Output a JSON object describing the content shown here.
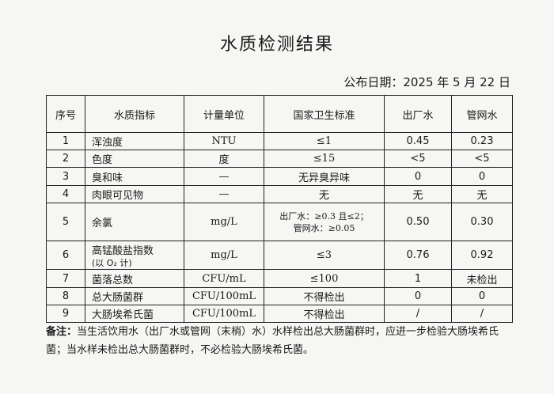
{
  "title": "水质检测结果",
  "date": "公布日期：2025 年 5 月 22 日",
  "headers": [
    "序号",
    "水质指标",
    "计量单位",
    "国家卫生标准",
    "出厂水",
    "管网水"
  ],
  "rows": [
    {
      "no": "1",
      "item": "浑浊度",
      "unit": "NTU",
      "standard": "≤1",
      "plant": "0.45",
      "network": "0.23"
    },
    {
      "no": "2",
      "item": "色度",
      "unit": "度",
      "standard": "≤15",
      "plant": "<5",
      "network": "<5"
    },
    {
      "no": "3",
      "item": "臭和味",
      "unit": "—",
      "standard": "无异臭异味",
      "plant": "0",
      "network": "0"
    },
    {
      "no": "4",
      "item": "肉眼可见物",
      "unit": "—",
      "standard": "无",
      "plant": "无",
      "network": "无"
    },
    {
      "no": "5",
      "item": "余氯",
      "unit": "mg/L",
      "standard": "出厂水：≥0.3 且≤2；",
      "standard2": "管网水：≥0.05",
      "plant": "0.50",
      "network": "0.30"
    },
    {
      "no": "6",
      "item": "高锰酸盐指数",
      "item2": "(以 O₂ 计)",
      "unit": "mg/L",
      "standard": "≤3",
      "plant": "0.76",
      "network": "0.92"
    },
    {
      "no": "7",
      "item": "菌落总数",
      "unit": "CFU/mL",
      "standard": "≤100",
      "plant": "1",
      "network": "未检出"
    },
    {
      "no": "8",
      "item": "总大肠菌群",
      "unit": "CFU/100mL",
      "standard": "不得检出",
      "plant": "0",
      "network": "0"
    },
    {
      "no": "9",
      "item": "大肠埃希氏菌",
      "unit": "CFU/100mL",
      "standard": "不得检出",
      "plant": "/",
      "network": "/"
    }
  ],
  "note": {
    "label": "备注：",
    "text": "当生活饮用水（出厂水或管网（末梢）水）水样检出总大肠菌群时，应进一步检验大肠埃希氏菌；当水样未检出总大肠菌群时，不必检验大肠埃希氏菌。"
  }
}
